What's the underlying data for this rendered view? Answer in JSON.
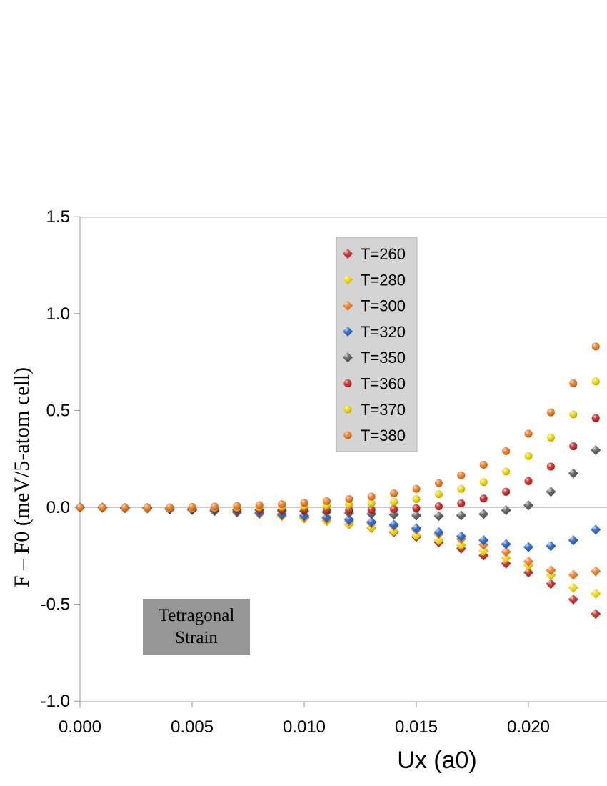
{
  "chart_data": {
    "type": "scatter",
    "title": "",
    "xlabel": "Ux (a0)",
    "ylabel": "F – F0 (meV/5-atom cell)",
    "xlim": [
      0.0,
      0.0235
    ],
    "ylim": [
      -1.0,
      1.5
    ],
    "x_ticks": [
      "0.000",
      "0.005",
      "0.010",
      "0.015",
      "0.020"
    ],
    "y_ticks": [
      "1.5",
      "1.0",
      "0.5",
      "0.0",
      "-0.5",
      "-1.0"
    ],
    "grid": false,
    "legend_position": "top-center",
    "annotation": [
      "Tetragonal",
      "Strain"
    ],
    "x": [
      0.0,
      0.001,
      0.002,
      0.003,
      0.004,
      0.005,
      0.006,
      0.007,
      0.008,
      0.009,
      0.01,
      0.011,
      0.012,
      0.013,
      0.014,
      0.015,
      0.016,
      0.017,
      0.018,
      0.019,
      0.02,
      0.021,
      0.022,
      0.023
    ],
    "series": [
      {
        "name": "T=260",
        "color": "#c8201c",
        "marker": "diamond",
        "values": [
          0.0,
          -0.001,
          -0.004,
          -0.005,
          -0.009,
          -0.014,
          -0.019,
          -0.025,
          -0.033,
          -0.042,
          -0.055,
          -0.07,
          -0.087,
          -0.106,
          -0.128,
          -0.153,
          -0.181,
          -0.213,
          -0.249,
          -0.29,
          -0.336,
          -0.395,
          -0.475,
          -0.55
        ]
      },
      {
        "name": "T=280",
        "color": "#f2d600",
        "marker": "diamond",
        "values": [
          0.0,
          -0.002,
          -0.004,
          -0.005,
          -0.01,
          -0.014,
          -0.02,
          -0.027,
          -0.035,
          -0.045,
          -0.057,
          -0.07,
          -0.086,
          -0.104,
          -0.124,
          -0.146,
          -0.17,
          -0.195,
          -0.225,
          -0.262,
          -0.3,
          -0.35,
          -0.415,
          -0.445
        ]
      },
      {
        "name": "T=300",
        "color": "#f07818",
        "marker": "diamond",
        "values": [
          0.0,
          -0.002,
          -0.004,
          -0.005,
          -0.011,
          -0.014,
          -0.02,
          -0.026,
          -0.033,
          -0.042,
          -0.05,
          -0.06,
          -0.071,
          -0.083,
          -0.097,
          -0.115,
          -0.138,
          -0.163,
          -0.193,
          -0.23,
          -0.28,
          -0.325,
          -0.348,
          -0.33
        ]
      },
      {
        "name": "T=320",
        "color": "#1a5cc8",
        "marker": "diamond",
        "values": [
          0.0,
          -0.001,
          -0.004,
          -0.004,
          -0.01,
          -0.013,
          -0.017,
          -0.022,
          -0.028,
          -0.035,
          -0.043,
          -0.052,
          -0.062,
          -0.075,
          -0.09,
          -0.108,
          -0.128,
          -0.15,
          -0.17,
          -0.19,
          -0.205,
          -0.2,
          -0.17,
          -0.115
        ]
      },
      {
        "name": "T=350",
        "color": "#555555",
        "marker": "diamond",
        "values": [
          0.0,
          -0.001,
          -0.003,
          -0.003,
          -0.007,
          -0.008,
          -0.01,
          -0.012,
          -0.014,
          -0.017,
          -0.02,
          -0.024,
          -0.029,
          -0.034,
          -0.038,
          -0.042,
          -0.045,
          -0.042,
          -0.035,
          -0.015,
          0.01,
          0.08,
          0.175,
          0.295
        ]
      },
      {
        "name": "T=360",
        "color": "#c8201c",
        "marker": "circle",
        "values": [
          0.0,
          -0.002,
          -0.003,
          -0.004,
          -0.006,
          -0.007,
          -0.008,
          -0.01,
          -0.012,
          -0.013,
          -0.014,
          -0.014,
          -0.014,
          -0.013,
          -0.01,
          -0.005,
          0.005,
          0.02,
          0.045,
          0.08,
          0.135,
          0.21,
          0.315,
          0.46
        ]
      },
      {
        "name": "T=370",
        "color": "#f2d600",
        "marker": "circle",
        "values": [
          0.0,
          -0.001,
          -0.002,
          -0.003,
          -0.004,
          -0.003,
          -0.002,
          -0.001,
          0.001,
          0.003,
          0.006,
          0.01,
          0.015,
          0.021,
          0.028,
          0.043,
          0.068,
          0.095,
          0.13,
          0.185,
          0.265,
          0.36,
          0.48,
          0.65
        ]
      },
      {
        "name": "T=380",
        "color": "#f07818",
        "marker": "circle",
        "values": [
          0.0,
          -0.001,
          -0.001,
          -0.001,
          0.0,
          0.002,
          0.004,
          0.007,
          0.011,
          0.016,
          0.023,
          0.032,
          0.043,
          0.055,
          0.072,
          0.095,
          0.125,
          0.165,
          0.22,
          0.29,
          0.38,
          0.49,
          0.64,
          0.83
        ]
      }
    ]
  }
}
